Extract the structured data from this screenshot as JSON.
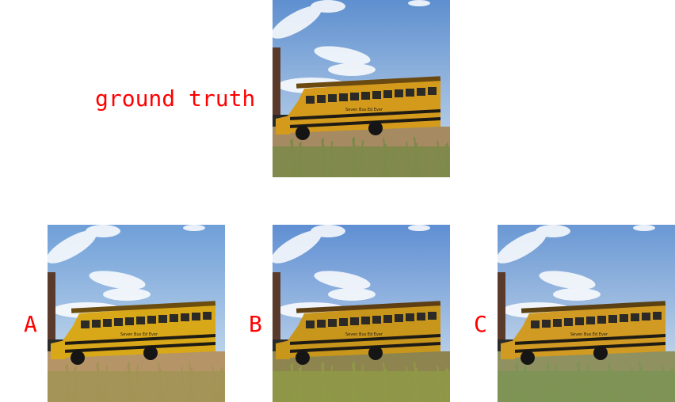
{
  "labels": {
    "gt": "ground truth",
    "a": "A",
    "b": "B",
    "c": "C"
  },
  "bus": {
    "sign_text": "Seven Bus Ed Ever"
  },
  "palette": {
    "label_color": "#ff0000",
    "gt": {
      "sky_top": "#5e8fcf",
      "sky_bottom": "#cfe0ef",
      "bus": "#d39a1c",
      "bus_dark": "#6a4a10",
      "grass": "#7d8a4a",
      "dirt": "#a68a62"
    },
    "a": {
      "sky_top": "#6f9fd8",
      "sky_bottom": "#d8e6f1",
      "bus": "#d9a819",
      "bus_dark": "#6b4d0f",
      "grass": "#a39456",
      "dirt": "#b59567"
    },
    "b": {
      "sky_top": "#5f8fd3",
      "sky_bottom": "#d6e4f0",
      "bus": "#c9961c",
      "bus_dark": "#5e3e13",
      "grass": "#8f9846",
      "dirt": "#8e8450"
    },
    "c": {
      "sky_top": "#6a98d4",
      "sky_bottom": "#dbe6ef",
      "bus": "#d19a23",
      "bus_dark": "#5a4012",
      "grass": "#7d9455",
      "dirt": "#8f9160"
    }
  }
}
